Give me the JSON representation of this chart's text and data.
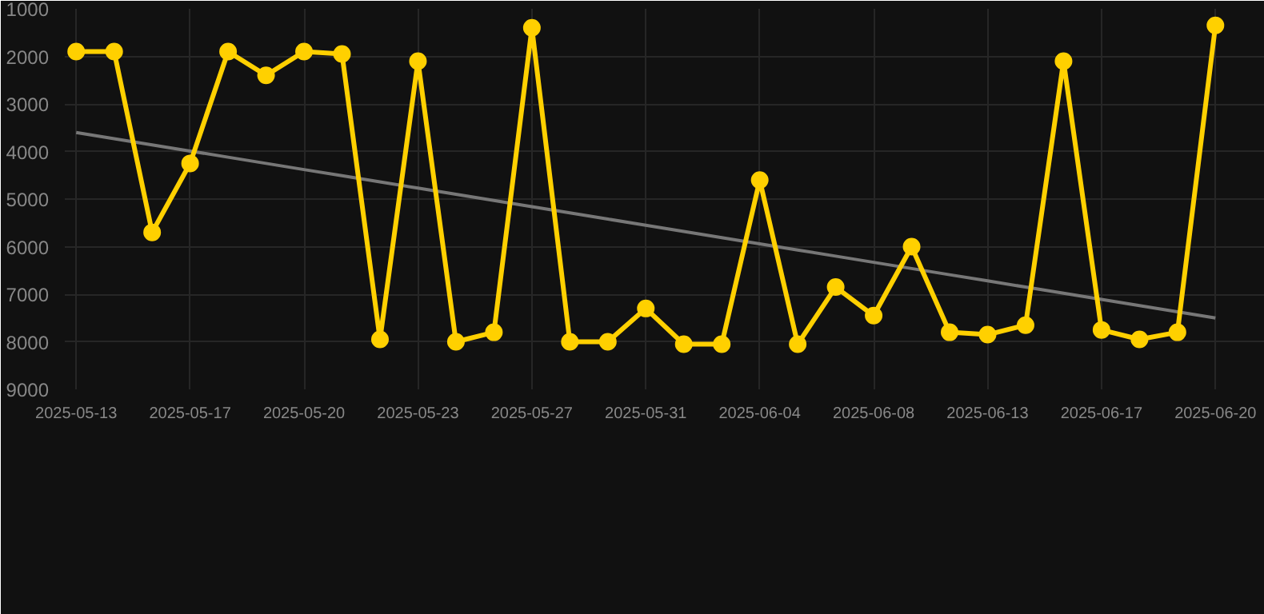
{
  "chart_data": {
    "type": "line",
    "categories": [
      "2025-05-13",
      null,
      null,
      "2025-05-17",
      null,
      null,
      "2025-05-20",
      null,
      null,
      "2025-05-23",
      null,
      null,
      "2025-05-27",
      null,
      null,
      "2025-05-31",
      null,
      null,
      "2025-06-04",
      null,
      null,
      "2025-06-08",
      null,
      null,
      "2025-06-13",
      null,
      null,
      "2025-06-17",
      null,
      null,
      "2025-06-20"
    ],
    "series": [
      {
        "color": "#ffd000",
        "marker": "circle",
        "values": [
          1900,
          1900,
          5700,
          4250,
          1900,
          2400,
          1900,
          1950,
          7950,
          2100,
          8000,
          7800,
          1400,
          8000,
          8000,
          7300,
          8050,
          8050,
          4600,
          8050,
          6850,
          7450,
          6000,
          7800,
          7850,
          7650,
          2100,
          7750,
          7950,
          7800,
          1350
        ]
      },
      {
        "color": "#777777",
        "marker": "none",
        "values": [
          3600,
          3730,
          3860,
          3990,
          4120,
          4250,
          4380,
          4510,
          4640,
          4770,
          4900,
          5030,
          5160,
          5290,
          5420,
          5550,
          5680,
          5810,
          5940,
          6070,
          6200,
          6330,
          6460,
          6590,
          6720,
          6850,
          6980,
          7110,
          7240,
          7370,
          7500
        ]
      }
    ],
    "ylim": [
      9000,
      1000
    ],
    "yticks": [
      1000,
      2000,
      3000,
      4000,
      5000,
      6000,
      7000,
      8000,
      9000
    ],
    "grid": true,
    "line_style": "solid"
  }
}
